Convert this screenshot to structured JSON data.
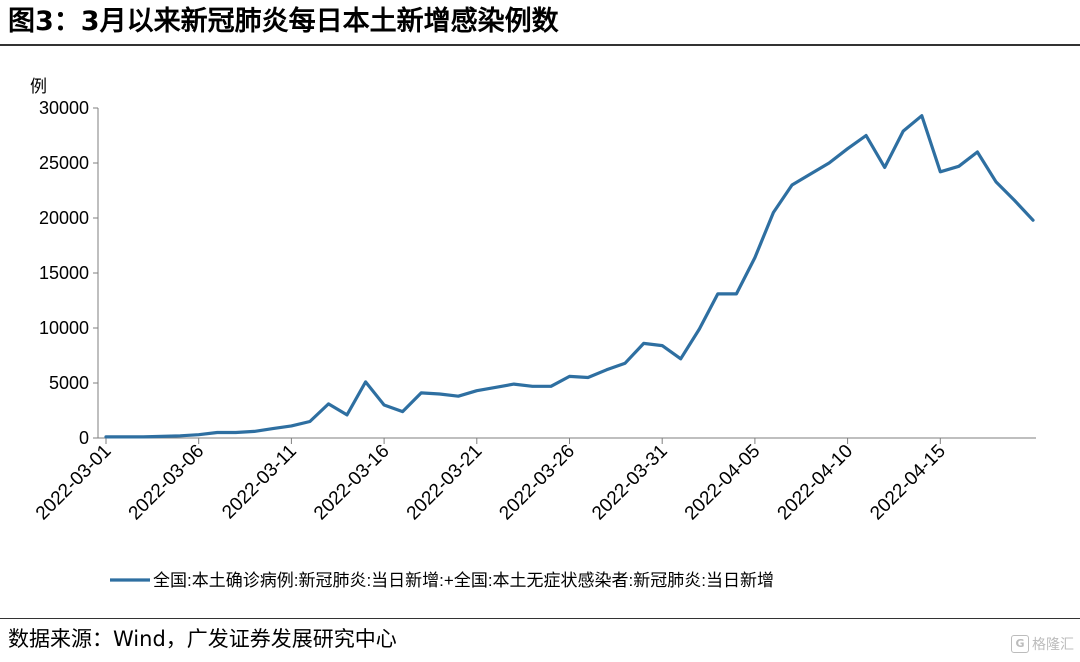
{
  "header": {
    "title": "图3：3月以来新冠肺炎每日本土新增感染例数"
  },
  "footer": {
    "source": "数据来源：Wind，广发证券发展研究中心",
    "watermark": "格隆汇",
    "watermark_logo": "G"
  },
  "colors": {
    "series": "#2e6fa1",
    "axis": "#7f7f7f"
  },
  "chart_data": {
    "type": "line",
    "ylabel": "例",
    "ylim": [
      0,
      30000
    ],
    "yticks": [
      0,
      5000,
      10000,
      15000,
      20000,
      25000,
      30000
    ],
    "xtick_labels": [
      "2022-03-01",
      "2022-03-06",
      "2022-03-11",
      "2022-03-16",
      "2022-03-21",
      "2022-03-26",
      "2022-03-31",
      "2022-04-05",
      "2022-04-10",
      "2022-04-15"
    ],
    "grid": false,
    "legend_position": "bottom",
    "series": [
      {
        "name": "全国:本土确诊病例:新冠肺炎:当日新增:+全国:本土无症状感染者:新冠肺炎:当日新增",
        "x": [
          "2022-03-01",
          "2022-03-02",
          "2022-03-03",
          "2022-03-04",
          "2022-03-05",
          "2022-03-06",
          "2022-03-07",
          "2022-03-08",
          "2022-03-09",
          "2022-03-10",
          "2022-03-11",
          "2022-03-12",
          "2022-03-13",
          "2022-03-14",
          "2022-03-15",
          "2022-03-16",
          "2022-03-17",
          "2022-03-18",
          "2022-03-19",
          "2022-03-20",
          "2022-03-21",
          "2022-03-22",
          "2022-03-23",
          "2022-03-24",
          "2022-03-25",
          "2022-03-26",
          "2022-03-27",
          "2022-03-28",
          "2022-03-29",
          "2022-03-30",
          "2022-03-31",
          "2022-04-01",
          "2022-04-02",
          "2022-04-03",
          "2022-04-04",
          "2022-04-05",
          "2022-04-06",
          "2022-04-07",
          "2022-04-08",
          "2022-04-09",
          "2022-04-10",
          "2022-04-11",
          "2022-04-12",
          "2022-04-13",
          "2022-04-14",
          "2022-04-15",
          "2022-04-16",
          "2022-04-17",
          "2022-04-18",
          "2022-04-19",
          "2022-04-20"
        ],
        "values": [
          100,
          100,
          100,
          150,
          200,
          300,
          500,
          500,
          600,
          850,
          1100,
          1500,
          3100,
          2100,
          5100,
          3000,
          2400,
          4100,
          4000,
          3800,
          4300,
          4600,
          4900,
          4700,
          4700,
          5600,
          5500,
          6200,
          6800,
          8600,
          8400,
          7200,
          9900,
          13100,
          13100,
          16400,
          20500,
          23000,
          24000,
          25000,
          26300,
          27500,
          24600,
          27900,
          29300,
          24200,
          24700,
          26000,
          23300,
          21600,
          19800
        ]
      }
    ]
  }
}
